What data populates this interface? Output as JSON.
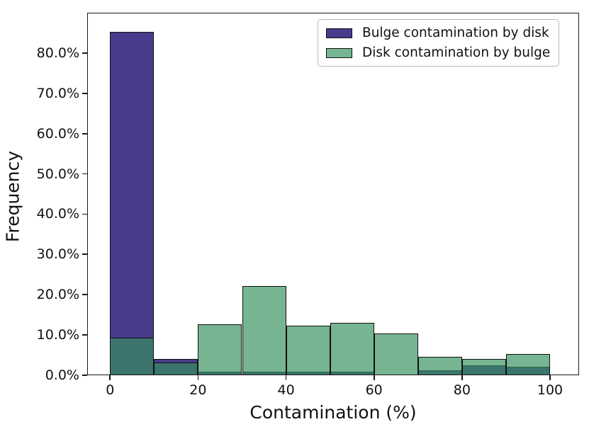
{
  "chart_data": {
    "type": "histogram",
    "title": "",
    "xlabel": "Contamination (%)",
    "ylabel": "Frequency",
    "bin_edges": [
      0,
      10,
      20,
      30,
      40,
      50,
      60,
      70,
      80,
      90,
      100
    ],
    "series": [
      {
        "id": "bulge",
        "name": "Bulge contamination by disk",
        "fill_color": "#473C8C",
        "legend_color": "#473C8C",
        "values_pct": [
          85.3,
          4.1,
          0.9,
          0.9,
          0.9,
          0.9,
          0,
          1.2,
          2.4,
          2.1
        ]
      },
      {
        "id": "disk",
        "name": "Disk contamination by bulge",
        "fill_color": "rgba(53,144,94,0.68)",
        "legend_color": "#76B492",
        "values_pct": [
          9.3,
          3.1,
          12.7,
          22.1,
          12.3,
          13.0,
          10.4,
          4.6,
          4.0,
          5.2
        ]
      }
    ],
    "overlap_color_note": "#3A7168",
    "bar_edge_color": "#111111",
    "x_ticks": [
      0,
      20,
      40,
      60,
      80,
      100
    ],
    "y_ticks": [
      {
        "value": 0,
        "label": "0.0%"
      },
      {
        "value": 10,
        "label": "10.0%"
      },
      {
        "value": 20,
        "label": "20.0%"
      },
      {
        "value": 30,
        "label": "30.0%"
      },
      {
        "value": 40,
        "label": "40.0%"
      },
      {
        "value": 50,
        "label": "50.0%"
      },
      {
        "value": 60,
        "label": "60.0%"
      },
      {
        "value": 70,
        "label": "70.0%"
      },
      {
        "value": 80,
        "label": "80.0%"
      }
    ],
    "xlim": [
      -5.2,
      106.6
    ],
    "ylim": [
      0,
      90
    ],
    "grid": false,
    "legend_position": "upper right"
  }
}
